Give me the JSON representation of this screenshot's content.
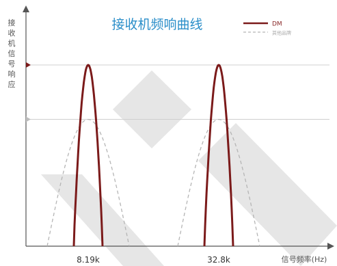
{
  "chart_data": {
    "type": "line",
    "title": "接收机频响曲线",
    "ylabel": "接收机信号响应",
    "xlabel": "信号频率(Hz)",
    "x_ticks": [
      "8.19k",
      "32.8k"
    ],
    "series": [
      {
        "name": "DM",
        "color": "#7b1a1a",
        "style": "solid",
        "peaks": [
          {
            "center": "8.19k",
            "level": 1.0,
            "width": 0.35
          },
          {
            "center": "32.8k",
            "level": 1.0,
            "width": 0.35
          }
        ]
      },
      {
        "name": "其他品牌",
        "color": "#b5b5b5",
        "style": "dashed",
        "peaks": [
          {
            "center": "8.19k",
            "level": 0.7,
            "width": 1.0
          },
          {
            "center": "32.8k",
            "level": 0.7,
            "width": 1.0
          }
        ]
      }
    ],
    "reference_levels": [
      1.0,
      0.7
    ],
    "grid": false,
    "legend_position": "top-right"
  },
  "watermark": {
    "color": "#e6e6e6"
  }
}
